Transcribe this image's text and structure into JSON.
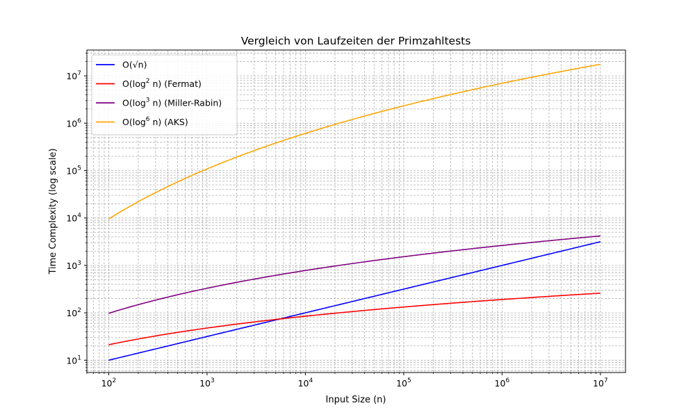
{
  "chart_data": {
    "type": "line",
    "title": "Vergleich von Laufzeiten der Primzahltests",
    "xlabel": "Input Size (n)",
    "ylabel": "Time Complexity (log scale)",
    "xscale": "log",
    "yscale": "log",
    "xlim": [
      60,
      18000000
    ],
    "ylim": [
      5.5,
      35000000
    ],
    "grid": "both (major and minor), dashed",
    "legend_position": "top-left",
    "x_tick_labels": [
      "10^2",
      "10^3",
      "10^4",
      "10^5",
      "10^6",
      "10^7"
    ],
    "y_tick_labels": [
      "10^1",
      "10^2",
      "10^3",
      "10^4",
      "10^5",
      "10^6",
      "10^7"
    ],
    "x_range": [
      100,
      10000000
    ],
    "series": [
      {
        "name": "O(√n)",
        "legend_main": "O(√n)",
        "legend_sup": "",
        "legend_tail": "",
        "color": "#0000ff",
        "formula": "sqrt",
        "values_at_ticks": [
          10,
          31.6,
          100,
          316,
          1000,
          3162
        ]
      },
      {
        "name": "O(log² n) (Fermat)",
        "legend_main": "O(log",
        "legend_sup": "2",
        "legend_tail": " n) (Fermat)",
        "color": "#ff0000",
        "formula": "ln^2",
        "values_at_ticks": [
          21.2,
          47.7,
          84.8,
          132.5,
          190.9,
          259.8
        ]
      },
      {
        "name": "O(log³ n) (Miller-Rabin)",
        "legend_main": "O(log",
        "legend_sup": "3",
        "legend_tail": " n) (Miller-Rabin)",
        "color": "#800080",
        "formula": "ln^3",
        "values_at_ticks": [
          97.7,
          329.6,
          781.3,
          1526,
          2637,
          4187
        ]
      },
      {
        "name": "O(log⁶ n) (AKS)",
        "legend_main": "O(log",
        "legend_sup": "6",
        "legend_tail": " n) (AKS)",
        "color": "#ffa500",
        "formula": "ln^6",
        "values_at_ticks": [
          9544,
          108600,
          610500,
          2329000,
          6953000,
          17530000
        ]
      }
    ]
  }
}
